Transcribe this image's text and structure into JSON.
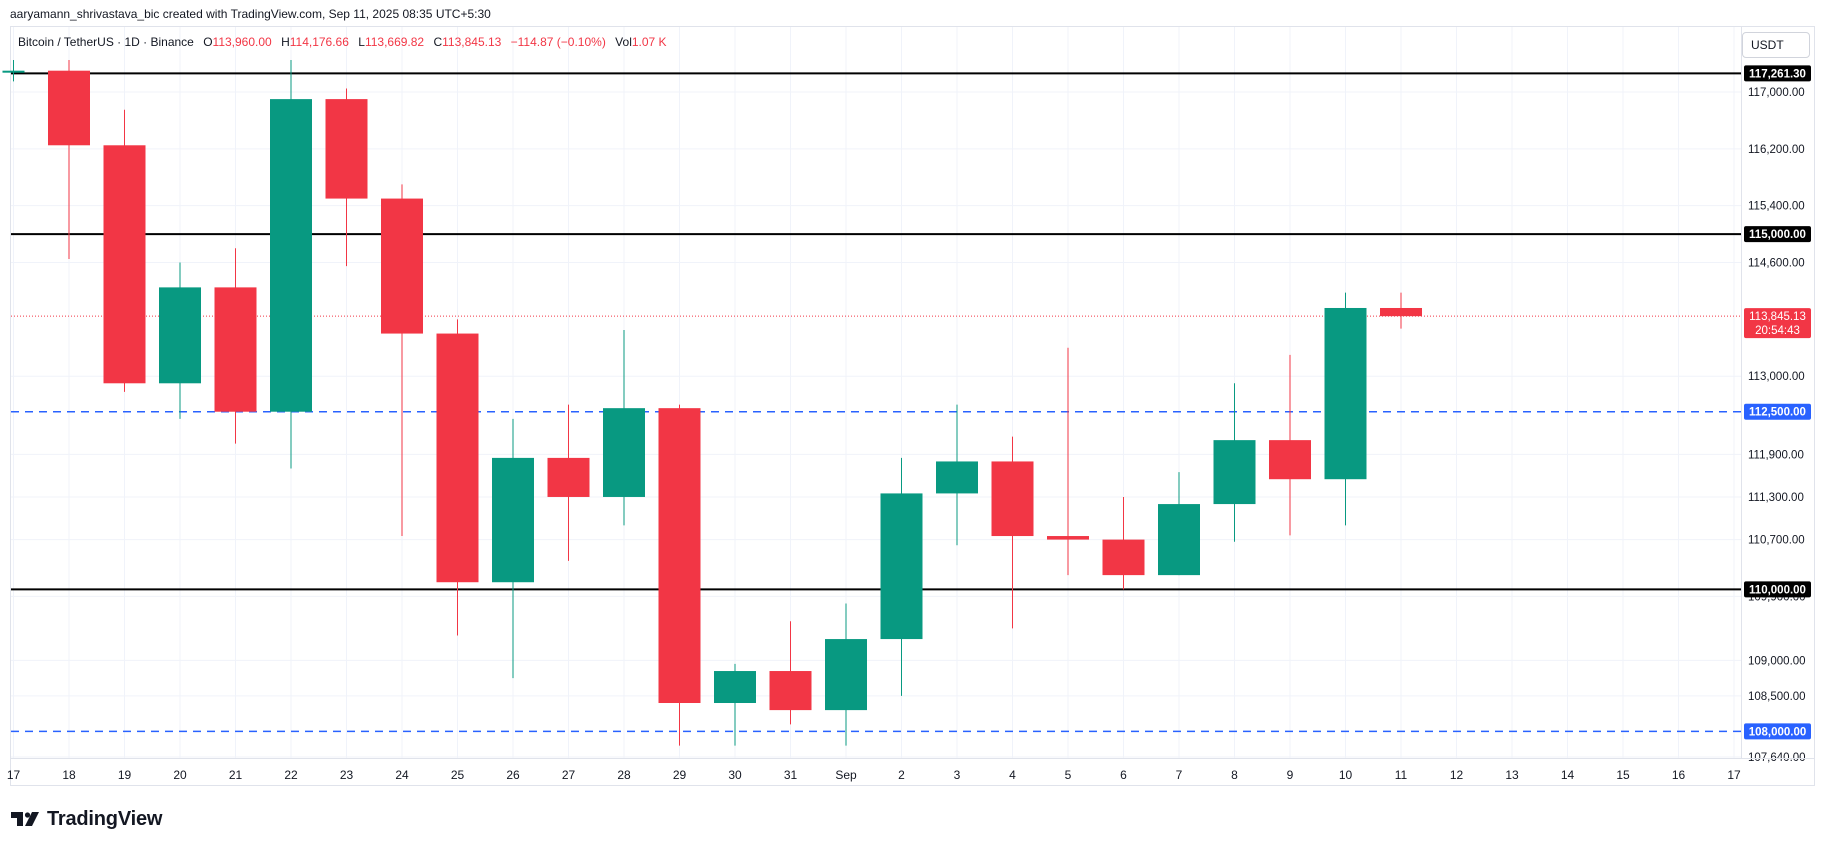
{
  "header": {
    "text": "aaryamann_shrivastava_bic created with TradingView.com, Sep 11, 2025 08:35 UTC+5:30"
  },
  "legend": {
    "symbol": "Bitcoin / TetherUS · 1D · Binance",
    "o_label": "O",
    "o_value": "113,960.00",
    "h_label": "H",
    "h_value": "114,176.66",
    "l_label": "L",
    "l_value": "113,669.82",
    "c_label": "C",
    "c_value": "113,845.13",
    "change": "−114.87 (−0.10%)",
    "vol_label": "Vol",
    "vol_value": "1.07 K"
  },
  "currency": "USDT",
  "logo_text": "TradingView",
  "colors": {
    "up": "#089981",
    "down": "#f23645",
    "grid": "#f0f3fa",
    "level_solid": "#000000",
    "level_dashed": "#2962ff",
    "last_price": "#f23645"
  },
  "chart_data": {
    "type": "candlestick",
    "title": "Bitcoin / TetherUS · 1D · Binance",
    "currency": "USDT",
    "ylim": [
      107640,
      118000
    ],
    "grid": true,
    "x_ticks": [
      "17",
      "18",
      "19",
      "20",
      "21",
      "22",
      "23",
      "24",
      "25",
      "26",
      "27",
      "28",
      "29",
      "30",
      "31",
      "Sep",
      "2",
      "3",
      "4",
      "5",
      "6",
      "7",
      "8",
      "9",
      "10",
      "11",
      "12",
      "13",
      "14",
      "15",
      "16",
      "17"
    ],
    "y_ticks": [
      {
        "value": 117000,
        "label": "117,000.00"
      },
      {
        "value": 116200,
        "label": "116,200.00"
      },
      {
        "value": 115400,
        "label": "115,400.00"
      },
      {
        "value": 114600,
        "label": "114,600.00"
      },
      {
        "value": 113000,
        "label": "113,000.00"
      },
      {
        "value": 111900,
        "label": "111,900.00"
      },
      {
        "value": 111300,
        "label": "111,300.00"
      },
      {
        "value": 110700,
        "label": "110,700.00"
      },
      {
        "value": 109900,
        "label": "109,900.00"
      },
      {
        "value": 109000,
        "label": "109,000.00"
      },
      {
        "value": 108500,
        "label": "108,500.00"
      },
      {
        "value": 107640,
        "label": "107,640.00"
      }
    ],
    "candles": [
      {
        "date": "17",
        "open": 117300,
        "high": 117450,
        "low": 117150,
        "close": 117300
      },
      {
        "date": "18",
        "open": 117300,
        "high": 117450,
        "low": 114650,
        "close": 116250
      },
      {
        "date": "19",
        "open": 116250,
        "high": 116750,
        "low": 112780,
        "close": 112900
      },
      {
        "date": "20",
        "open": 112900,
        "high": 114600,
        "low": 112400,
        "close": 114250
      },
      {
        "date": "21",
        "open": 114250,
        "high": 114800,
        "low": 112050,
        "close": 112500
      },
      {
        "date": "22",
        "open": 112500,
        "high": 117450,
        "low": 111700,
        "close": 116900
      },
      {
        "date": "23",
        "open": 116900,
        "high": 117050,
        "low": 114550,
        "close": 115500
      },
      {
        "date": "24",
        "open": 115500,
        "high": 115700,
        "low": 110750,
        "close": 113600
      },
      {
        "date": "25",
        "open": 113600,
        "high": 113800,
        "low": 109350,
        "close": 110100
      },
      {
        "date": "26",
        "open": 110100,
        "high": 112400,
        "low": 108750,
        "close": 111850
      },
      {
        "date": "27",
        "open": 111850,
        "high": 112600,
        "low": 110400,
        "close": 111300
      },
      {
        "date": "28",
        "open": 111300,
        "high": 113650,
        "low": 110900,
        "close": 112550
      },
      {
        "date": "29",
        "open": 112550,
        "high": 112600,
        "low": 107800,
        "close": 108400
      },
      {
        "date": "30",
        "open": 108400,
        "high": 108950,
        "low": 107800,
        "close": 108850
      },
      {
        "date": "31",
        "open": 108850,
        "high": 109550,
        "low": 108100,
        "close": 108300
      },
      {
        "date": "Sep 1",
        "open": 108300,
        "high": 109800,
        "low": 107800,
        "close": 109300
      },
      {
        "date": "2",
        "open": 109300,
        "high": 111850,
        "low": 108500,
        "close": 111350
      },
      {
        "date": "3",
        "open": 111350,
        "high": 112600,
        "low": 110620,
        "close": 111800
      },
      {
        "date": "4",
        "open": 111800,
        "high": 112150,
        "low": 109450,
        "close": 110750
      },
      {
        "date": "5",
        "open": 110750,
        "high": 113400,
        "low": 110200,
        "close": 110700
      },
      {
        "date": "6",
        "open": 110700,
        "high": 111300,
        "low": 110000,
        "close": 110200
      },
      {
        "date": "7",
        "open": 110200,
        "high": 111650,
        "low": 110200,
        "close": 111200
      },
      {
        "date": "8",
        "open": 111200,
        "high": 112900,
        "low": 110670,
        "close": 112100
      },
      {
        "date": "9",
        "open": 112100,
        "high": 113300,
        "low": 110760,
        "close": 111550
      },
      {
        "date": "10",
        "open": 111550,
        "high": 114176.66,
        "low": 110900,
        "close": 113960
      },
      {
        "date": "11",
        "open": 113960,
        "high": 114176.66,
        "low": 113669.82,
        "close": 113845.13
      }
    ],
    "levels": [
      {
        "value": 117261.3,
        "label": "117,261.30",
        "style": "solid"
      },
      {
        "value": 115000,
        "label": "115,000.00",
        "style": "solid"
      },
      {
        "value": 112500,
        "label": "112,500.00",
        "style": "dashed"
      },
      {
        "value": 110000,
        "label": "110,000.00",
        "style": "solid"
      },
      {
        "value": 108000,
        "label": "108,000.00",
        "style": "dashed"
      }
    ],
    "last_price": {
      "value": 113845.13,
      "label": "113,845.13",
      "countdown": "20:54:43"
    }
  }
}
